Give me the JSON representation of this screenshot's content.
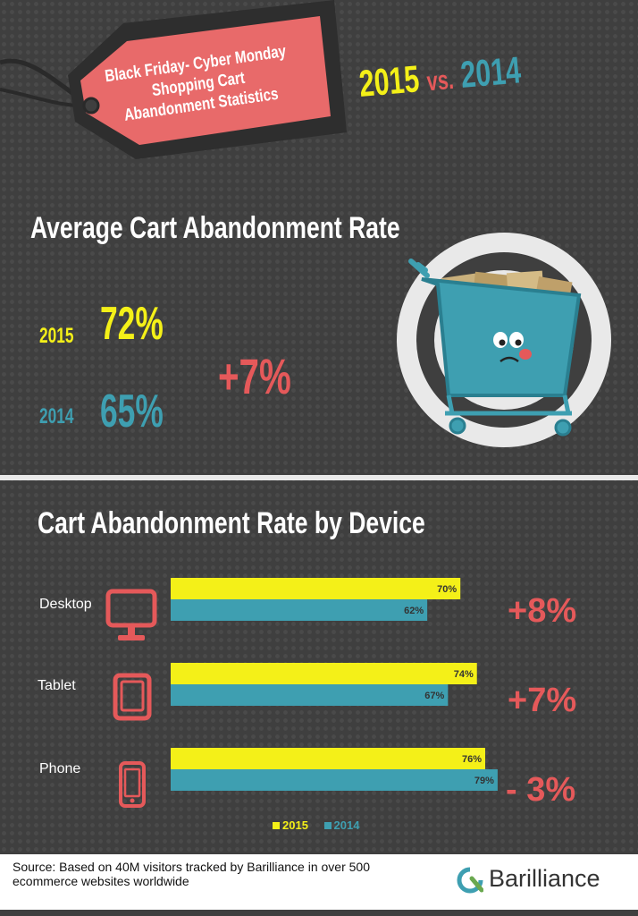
{
  "header": {
    "tag_lines": [
      "Black Friday- Cyber Monday",
      "Shopping Cart",
      "Abandonment Statistics"
    ],
    "year_a": "2015",
    "vs": "vs.",
    "year_b": "2014"
  },
  "average": {
    "title": "Average Cart Abandonment Rate",
    "year_2015": "2015",
    "value_2015": "72%",
    "year_2014": "2014",
    "value_2014": "65%",
    "change": "+7%"
  },
  "colors": {
    "yellow_2015": "#f4f018",
    "blue_2014": "#3e9fb1",
    "accent_red": "#e5595a"
  },
  "icons": {
    "hero": "shopping-cart-icon",
    "desktop": "desktop-monitor-icon",
    "tablet": "tablet-icon",
    "phone": "phone-icon",
    "brand": "barilliance-logo-icon"
  },
  "chart_data": {
    "type": "bar",
    "orientation": "horizontal",
    "title": "Cart Abandonment Rate by Device",
    "categories": [
      "Desktop",
      "Tablet",
      "Phone"
    ],
    "series": [
      {
        "name": "2015",
        "values": [
          70,
          74,
          76
        ],
        "labels": [
          "70%",
          "74%",
          "76%"
        ],
        "color": "#f4f018"
      },
      {
        "name": "2014",
        "values": [
          62,
          67,
          79
        ],
        "labels": [
          "62%",
          "67%",
          "79%"
        ],
        "color": "#3e9fb1"
      }
    ],
    "changes": [
      "+8%",
      "+7%",
      "- 3%"
    ],
    "legend": {
      "position": "bottom",
      "entries": [
        "2015",
        "2014"
      ]
    }
  },
  "footer": {
    "source_text": "Source: Based on 40M visitors tracked by Barilliance in over 500 ecommerce websites worldwide",
    "brand": "Barilliance"
  }
}
